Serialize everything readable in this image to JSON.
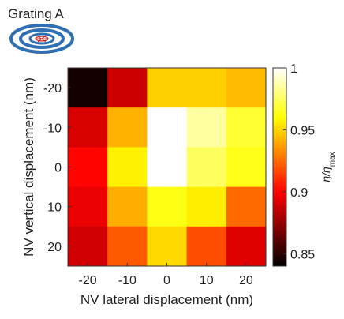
{
  "panel_title": "Grating A",
  "icon": "concentric-grating-icon",
  "chart_data": {
    "type": "heatmap",
    "title": "",
    "xlabel": "NV lateral displacement (nm)",
    "ylabel": "NV vertical displacement (nm)",
    "x": [
      -20,
      -10,
      0,
      10,
      20
    ],
    "y": [
      -20,
      -10,
      0,
      10,
      20
    ],
    "x_tick_labels": [
      "-20",
      "-10",
      "0",
      "10",
      "20"
    ],
    "y_tick_labels": [
      "-20",
      "-10",
      "0",
      "10",
      "20"
    ],
    "values": [
      [
        0.845,
        0.888,
        0.949,
        0.949,
        0.944
      ],
      [
        0.891,
        0.942,
        1.0,
        0.985,
        0.968
      ],
      [
        0.901,
        0.957,
        1.0,
        0.975,
        0.964
      ],
      [
        0.895,
        0.941,
        0.963,
        0.956,
        0.925
      ],
      [
        0.889,
        0.921,
        0.951,
        0.918,
        0.893
      ]
    ],
    "colorbar": {
      "label_main": "η/η",
      "label_sub": "max",
      "range": [
        0.84,
        1.0
      ],
      "ticks": [
        0.85,
        0.9,
        0.95,
        1.0
      ],
      "tick_labels": [
        "0.85",
        "0.9",
        "0.95",
        "1"
      ],
      "colormap": "hot"
    }
  }
}
